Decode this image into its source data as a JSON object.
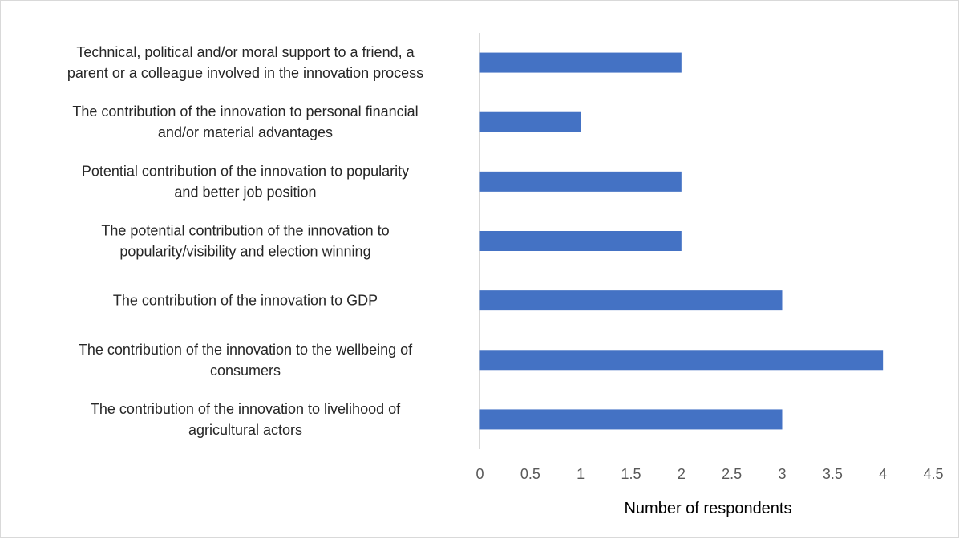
{
  "chart_data": {
    "type": "bar",
    "orientation": "horizontal",
    "title": "",
    "xlabel": "Number of respondents",
    "ylabel": "",
    "xlim": [
      0,
      4.5
    ],
    "x_ticks": [
      "0",
      "0.5",
      "1",
      "1.5",
      "2",
      "2.5",
      "3",
      "3.5",
      "4",
      "4.5"
    ],
    "categories": [
      [
        "Technical, political and/or moral support to a friend, a",
        "parent or a colleague involved in the innovation process"
      ],
      [
        "The contribution of the innovation to personal financial",
        "and/or material advantages"
      ],
      [
        "Potential contribution of the innovation to popularity",
        "and better job position"
      ],
      [
        "The potential contribution of the innovation to",
        "popularity/visibility and election winning"
      ],
      [
        "The contribution of the innovation to GDP"
      ],
      [
        "The contribution of the innovation to the wellbeing of",
        "consumers"
      ],
      [
        "The contribution of the innovation to livelihood of",
        "agricultural actors"
      ]
    ],
    "values": [
      2,
      1,
      2,
      2,
      3,
      4,
      3
    ],
    "bar_color": "#4472c4",
    "grid": false,
    "legend": "none"
  }
}
